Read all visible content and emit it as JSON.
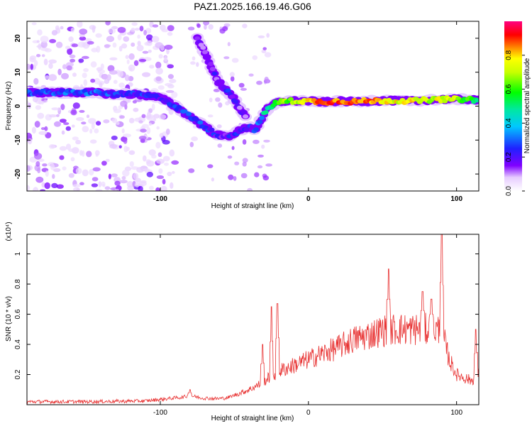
{
  "title": "PAZ1.2025.166.19.46.G06",
  "chart_data": [
    {
      "type": "heatmap",
      "name": "spectrogram",
      "xlabel": "Height of straight line (km)",
      "ylabel": "Frequency (Hz)",
      "xlim": [
        -190,
        115
      ],
      "ylim": [
        -25,
        25
      ],
      "xticks": [
        -100,
        0,
        100
      ],
      "yticks": [
        -20,
        -10,
        0,
        10,
        20
      ],
      "colorbar": {
        "label": "Normalized spectral amplitude",
        "range": [
          0,
          1
        ],
        "ticks": [
          0.0,
          0.2,
          0.4,
          0.6,
          0.8
        ]
      },
      "ridge": {
        "x": [
          -190,
          -175,
          -160,
          -145,
          -130,
          -115,
          -100,
          -90,
          -80,
          -70,
          -62,
          -55,
          -50,
          -45,
          -40,
          -36,
          -32,
          -28,
          -22,
          -15,
          -5,
          0,
          10,
          20,
          30,
          40,
          50,
          60,
          70,
          80,
          90,
          100,
          110,
          115
        ],
        "y": [
          4,
          4,
          4,
          4,
          3.5,
          3.5,
          2.5,
          0,
          -3,
          -6,
          -8.5,
          -9,
          -8,
          -7,
          -6,
          -7,
          -4,
          -1,
          1,
          1.5,
          1.5,
          1.5,
          1.2,
          1.5,
          1.3,
          1.5,
          1.6,
          1.6,
          1.5,
          1.8,
          2,
          2,
          2,
          1.5
        ],
        "amplitude": [
          0.3,
          0.25,
          0.3,
          0.28,
          0.25,
          0.25,
          0.2,
          0.22,
          0.25,
          0.25,
          0.2,
          0.2,
          0.2,
          0.2,
          0.2,
          0.25,
          0.35,
          0.5,
          0.6,
          0.65,
          0.7,
          0.8,
          0.9,
          0.85,
          0.9,
          0.85,
          0.8,
          0.75,
          0.75,
          0.7,
          0.75,
          0.7,
          0.55,
          0.45
        ]
      },
      "secondary_ridge": {
        "x": [
          -75,
          -68,
          -62,
          -56,
          -50,
          -46,
          -42
        ],
        "y": [
          20,
          14,
          8,
          5,
          2,
          -1,
          -3
        ],
        "amplitude": [
          0.1,
          0.12,
          0.18,
          0.22,
          0.2,
          0.15,
          0.12
        ]
      }
    },
    {
      "type": "line",
      "name": "snr",
      "xlabel": "Height of straight line (km)",
      "ylabel": "SNR (10 * v/v)",
      "y_multiplier": "(x10⁴)",
      "xlim": [
        -190,
        115
      ],
      "ylim": [
        0,
        1.13
      ],
      "xticks": [
        -100,
        0,
        100
      ],
      "yticks": [
        0.2,
        0.4,
        0.6,
        0.8,
        1
      ],
      "color": "#e83232",
      "baseline": {
        "x": [
          -190,
          -150,
          -110,
          -95,
          -85,
          -80,
          -72,
          -62,
          -55,
          -48,
          -40,
          -32,
          -25,
          -18,
          -10,
          0,
          10,
          20,
          30,
          40,
          50,
          55,
          60,
          70,
          80,
          85,
          90,
          95,
          100,
          105,
          110,
          115
        ],
        "y": [
          0.02,
          0.02,
          0.025,
          0.04,
          0.05,
          0.06,
          0.045,
          0.04,
          0.045,
          0.07,
          0.1,
          0.14,
          0.19,
          0.23,
          0.26,
          0.3,
          0.34,
          0.38,
          0.43,
          0.46,
          0.49,
          0.5,
          0.5,
          0.5,
          0.5,
          0.5,
          0.49,
          0.3,
          0.2,
          0.18,
          0.16,
          0.2
        ]
      },
      "spikes": [
        {
          "x": -80,
          "y": 0.1
        },
        {
          "x": -31,
          "y": 0.4
        },
        {
          "x": -25,
          "y": 0.65
        },
        {
          "x": -21,
          "y": 0.67
        },
        {
          "x": 54,
          "y": 0.9
        },
        {
          "x": 77,
          "y": 0.75
        },
        {
          "x": 83,
          "y": 0.7
        },
        {
          "x": 90,
          "y": 1.13
        },
        {
          "x": 113,
          "y": 0.5
        }
      ]
    }
  ]
}
